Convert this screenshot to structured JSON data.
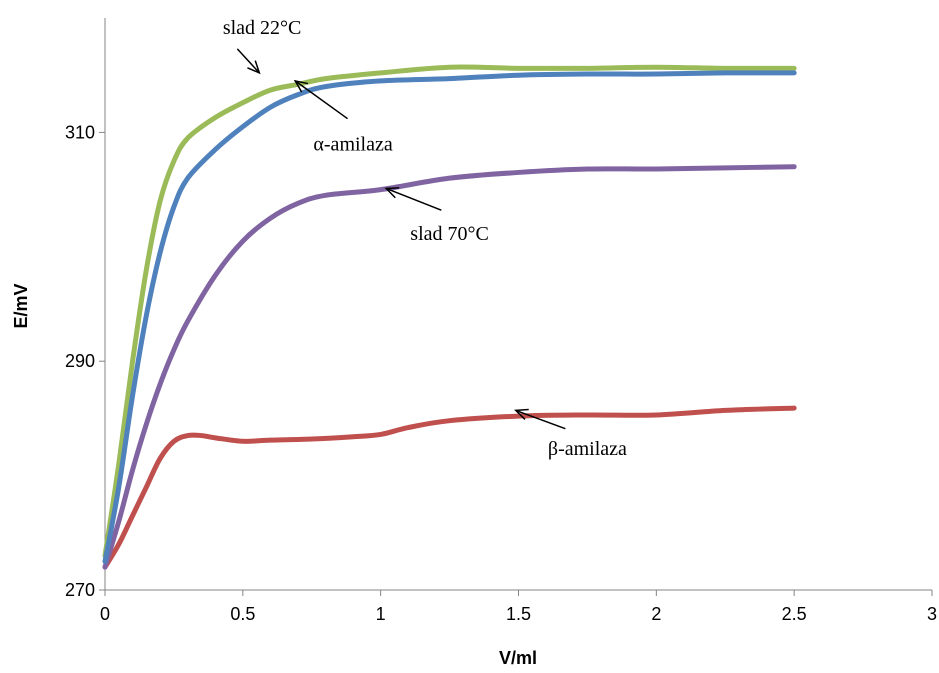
{
  "chart_data": {
    "type": "line",
    "title": "",
    "xlabel": "V/ml",
    "ylabel": "E/mV",
    "xlim": [
      0,
      3
    ],
    "ylim": [
      270,
      320
    ],
    "x_ticks": [
      0,
      0.5,
      1,
      1.5,
      2,
      2.5,
      3
    ],
    "x_tick_labels": [
      "0",
      "0.5",
      "1",
      "1.5",
      "2",
      "2.5",
      "3"
    ],
    "y_ticks": [
      270,
      290,
      310
    ],
    "y_tick_labels": [
      "270",
      "290",
      "310"
    ],
    "grid": false,
    "legend": "none",
    "series": [
      {
        "id": "slad22",
        "color": "#9BBB59",
        "points": [
          [
            0,
            273.0
          ],
          [
            0.05,
            281.0
          ],
          [
            0.1,
            290.0
          ],
          [
            0.15,
            298.0
          ],
          [
            0.2,
            304.0
          ],
          [
            0.25,
            307.5
          ],
          [
            0.3,
            309.5
          ],
          [
            0.4,
            311.3
          ],
          [
            0.5,
            312.6
          ],
          [
            0.6,
            313.7
          ],
          [
            0.7,
            314.2
          ],
          [
            0.8,
            314.7
          ],
          [
            1.0,
            315.2
          ],
          [
            1.25,
            315.7
          ],
          [
            1.5,
            315.6
          ],
          [
            1.75,
            315.6
          ],
          [
            2.0,
            315.7
          ],
          [
            2.25,
            315.6
          ],
          [
            2.5,
            315.6
          ]
        ]
      },
      {
        "id": "alpha",
        "color": "#4F81BD",
        "points": [
          [
            0,
            272.5
          ],
          [
            0.05,
            279.0
          ],
          [
            0.1,
            287.0
          ],
          [
            0.15,
            294.0
          ],
          [
            0.2,
            299.5
          ],
          [
            0.25,
            303.5
          ],
          [
            0.3,
            306.0
          ],
          [
            0.4,
            308.5
          ],
          [
            0.5,
            310.5
          ],
          [
            0.6,
            312.2
          ],
          [
            0.7,
            313.3
          ],
          [
            0.8,
            314.0
          ],
          [
            1.0,
            314.5
          ],
          [
            1.25,
            314.7
          ],
          [
            1.5,
            315.0
          ],
          [
            1.75,
            315.1
          ],
          [
            2.0,
            315.1
          ],
          [
            2.25,
            315.2
          ],
          [
            2.5,
            315.2
          ]
        ]
      },
      {
        "id": "slad70",
        "color": "#8064A2",
        "points": [
          [
            0,
            272.0
          ],
          [
            0.05,
            276.0
          ],
          [
            0.1,
            280.5
          ],
          [
            0.15,
            284.5
          ],
          [
            0.2,
            288.0
          ],
          [
            0.25,
            291.0
          ],
          [
            0.3,
            293.5
          ],
          [
            0.4,
            297.5
          ],
          [
            0.5,
            300.5
          ],
          [
            0.6,
            302.5
          ],
          [
            0.7,
            303.8
          ],
          [
            0.8,
            304.5
          ],
          [
            1.0,
            305.0
          ],
          [
            1.25,
            306.0
          ],
          [
            1.5,
            306.5
          ],
          [
            1.75,
            306.8
          ],
          [
            2.0,
            306.8
          ],
          [
            2.25,
            306.9
          ],
          [
            2.5,
            307.0
          ]
        ]
      },
      {
        "id": "beta",
        "color": "#C0504D",
        "points": [
          [
            0,
            272.0
          ],
          [
            0.05,
            274.0
          ],
          [
            0.1,
            276.5
          ],
          [
            0.15,
            279.0
          ],
          [
            0.2,
            281.5
          ],
          [
            0.25,
            283.0
          ],
          [
            0.3,
            283.5
          ],
          [
            0.35,
            283.5
          ],
          [
            0.4,
            283.3
          ],
          [
            0.5,
            283.0
          ],
          [
            0.6,
            283.1
          ],
          [
            0.75,
            283.2
          ],
          [
            0.9,
            283.4
          ],
          [
            1.0,
            283.6
          ],
          [
            1.1,
            284.2
          ],
          [
            1.25,
            284.8
          ],
          [
            1.5,
            285.2
          ],
          [
            1.75,
            285.3
          ],
          [
            2.0,
            285.3
          ],
          [
            2.25,
            285.7
          ],
          [
            2.5,
            285.9
          ]
        ]
      }
    ],
    "annotations": [
      {
        "id": "slad22",
        "text": "slad 22°C",
        "text_x": 0.57,
        "text_y": 318.6,
        "arrow_from": [
          0.48,
          317.3
        ],
        "arrow_to": [
          0.56,
          315.2
        ]
      },
      {
        "id": "alpha",
        "text": "α-amilaza",
        "text_x": 0.9,
        "text_y": 308.4,
        "arrow_from": [
          0.88,
          311.2
        ],
        "arrow_to": [
          0.69,
          314.5
        ]
      },
      {
        "id": "slad70",
        "text": "slad 70°C",
        "text_x": 1.25,
        "text_y": 300.6,
        "arrow_from": [
          1.22,
          303.2
        ],
        "arrow_to": [
          1.02,
          305.1
        ]
      },
      {
        "id": "beta",
        "text": "β-amilaza",
        "text_x": 1.75,
        "text_y": 281.8,
        "arrow_from": [
          1.67,
          284.1
        ],
        "arrow_to": [
          1.49,
          285.7
        ]
      }
    ]
  }
}
